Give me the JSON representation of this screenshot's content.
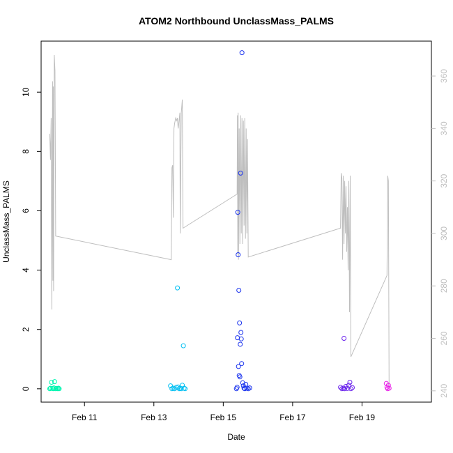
{
  "chart_data": {
    "type": "scatter",
    "title": "ATOM2 Northbound UnclassMass_PALMS",
    "xlabel": "Date",
    "ylabel": "UnclassMass_PALMS",
    "x_ticks": [
      "Feb 11",
      "Feb 13",
      "Feb 15",
      "Feb 17",
      "Feb 19"
    ],
    "x_tick_days": [
      11,
      13,
      15,
      17,
      19
    ],
    "xlim_days": [
      9.75,
      21.0
    ],
    "ylim": [
      -0.45,
      11.72
    ],
    "y_ticks": [
      0,
      2,
      4,
      6,
      8,
      10
    ],
    "y2lim": [
      235.7,
      373.3
    ],
    "y2_ticks": [
      240,
      260,
      280,
      300,
      320,
      340,
      360
    ],
    "grid": false,
    "legend": "none",
    "scatter_series": [
      {
        "color": "#00f5b0",
        "points": [
          [
            10.0,
            0.0
          ],
          [
            10.02,
            0.02
          ],
          [
            10.05,
            0.22
          ],
          [
            10.07,
            0.01
          ],
          [
            10.1,
            0.0
          ],
          [
            10.12,
            0.03
          ],
          [
            10.14,
            0.24
          ],
          [
            10.17,
            0.0
          ],
          [
            10.2,
            0.01
          ],
          [
            10.23,
            0.0
          ],
          [
            10.25,
            0.02
          ],
          [
            10.27,
            0.0
          ]
        ]
      },
      {
        "color": "#00bff2",
        "points": [
          [
            13.48,
            0.1
          ],
          [
            13.52,
            0.0
          ],
          [
            13.56,
            0.02
          ],
          [
            13.6,
            0.0
          ],
          [
            13.65,
            0.05
          ],
          [
            13.68,
            3.4
          ],
          [
            13.7,
            0.06
          ],
          [
            13.73,
            0.0
          ],
          [
            13.76,
            0.02
          ],
          [
            13.79,
            0.0
          ],
          [
            13.82,
            0.12
          ],
          [
            13.85,
            1.45
          ],
          [
            13.87,
            0.02
          ],
          [
            13.9,
            0.0
          ]
        ]
      },
      {
        "color": "#1a33ee",
        "points": [
          [
            15.38,
            0.0
          ],
          [
            15.4,
            0.05
          ],
          [
            15.41,
            1.72
          ],
          [
            15.42,
            5.95
          ],
          [
            15.43,
            4.52
          ],
          [
            15.44,
            0.75
          ],
          [
            15.45,
            3.32
          ],
          [
            15.46,
            0.45
          ],
          [
            15.47,
            2.22
          ],
          [
            15.48,
            0.4
          ],
          [
            15.49,
            1.5
          ],
          [
            15.5,
            7.27
          ],
          [
            15.51,
            1.9
          ],
          [
            15.52,
            1.68
          ],
          [
            15.53,
            0.85
          ],
          [
            15.54,
            11.33
          ],
          [
            15.56,
            0.2
          ],
          [
            15.58,
            0.1
          ],
          [
            15.6,
            0.02
          ],
          [
            15.62,
            0.0
          ],
          [
            15.65,
            0.15
          ],
          [
            15.68,
            0.02
          ],
          [
            15.72,
            0.0
          ],
          [
            15.76,
            0.03
          ]
        ]
      },
      {
        "color": "#6a22ec",
        "points": [
          [
            18.38,
            0.05
          ],
          [
            18.42,
            0.0
          ],
          [
            18.46,
            0.02
          ],
          [
            18.48,
            1.7
          ],
          [
            18.5,
            0.0
          ],
          [
            18.54,
            0.08
          ],
          [
            18.58,
            0.01
          ],
          [
            18.62,
            0.12
          ],
          [
            18.65,
            0.22
          ],
          [
            18.68,
            0.0
          ],
          [
            18.72,
            0.04
          ]
        ]
      },
      {
        "color": "#e81ee8",
        "points": [
          [
            19.7,
            0.18
          ],
          [
            19.72,
            0.05
          ],
          [
            19.74,
            0.0
          ],
          [
            19.76,
            0.12
          ],
          [
            19.78,
            0.02
          ]
        ]
      }
    ],
    "secondary_line": {
      "color": "#bebebe",
      "axis": "right",
      "points": [
        [
          10.0,
          338
        ],
        [
          10.02,
          328
        ],
        [
          10.04,
          344
        ],
        [
          10.06,
          271
        ],
        [
          10.08,
          358
        ],
        [
          10.09,
          282
        ],
        [
          10.1,
          356
        ],
        [
          10.11,
          278
        ],
        [
          10.13,
          368
        ],
        [
          10.15,
          362
        ],
        [
          10.17,
          299
        ],
        [
          13.5,
          290
        ],
        [
          13.52,
          325
        ],
        [
          13.54,
          326
        ],
        [
          13.56,
          306
        ],
        [
          13.58,
          340
        ],
        [
          13.6,
          342
        ],
        [
          13.63,
          344
        ],
        [
          13.66,
          343
        ],
        [
          13.68,
          344
        ],
        [
          13.7,
          340
        ],
        [
          13.72,
          342
        ],
        [
          13.75,
          346
        ],
        [
          13.76,
          300
        ],
        [
          13.79,
          346
        ],
        [
          13.82,
          351
        ],
        [
          13.84,
          302
        ],
        [
          15.4,
          315
        ],
        [
          15.41,
          345
        ],
        [
          15.42,
          292
        ],
        [
          15.43,
          346
        ],
        [
          15.44,
          290
        ],
        [
          15.46,
          340
        ],
        [
          15.48,
          296
        ],
        [
          15.5,
          345
        ],
        [
          15.52,
          300
        ],
        [
          15.54,
          344
        ],
        [
          15.56,
          296
        ],
        [
          15.58,
          343
        ],
        [
          15.6,
          303
        ],
        [
          15.62,
          344
        ],
        [
          15.64,
          298
        ],
        [
          15.66,
          340
        ],
        [
          15.68,
          300
        ],
        [
          15.7,
          336
        ],
        [
          15.72,
          291
        ],
        [
          18.38,
          302
        ],
        [
          18.4,
          323
        ],
        [
          18.42,
          321
        ],
        [
          18.44,
          290
        ],
        [
          18.46,
          322
        ],
        [
          18.48,
          296
        ],
        [
          18.5,
          320
        ],
        [
          18.52,
          300
        ],
        [
          18.54,
          318
        ],
        [
          18.56,
          293
        ],
        [
          18.58,
          310
        ],
        [
          18.6,
          286
        ],
        [
          18.62,
          320
        ],
        [
          18.64,
          270
        ],
        [
          18.66,
          322
        ],
        [
          18.68,
          253
        ],
        [
          19.72,
          284
        ],
        [
          19.74,
          322
        ],
        [
          19.76,
          320
        ],
        [
          19.78,
          242
        ]
      ]
    }
  }
}
